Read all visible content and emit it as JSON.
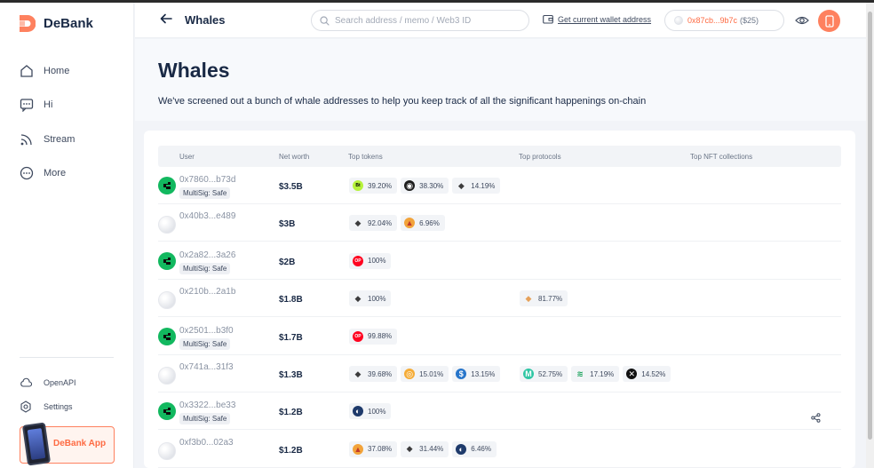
{
  "app": {
    "name": "DeBank"
  },
  "sidebar": {
    "items": [
      {
        "label": "Home",
        "icon": "home-icon"
      },
      {
        "label": "Hi",
        "icon": "chat-icon"
      },
      {
        "label": "Stream",
        "icon": "rss-icon"
      },
      {
        "label": "More",
        "icon": "more-icon"
      }
    ],
    "bottom": [
      {
        "label": "OpenAPI",
        "icon": "cloud-icon"
      },
      {
        "label": "Settings",
        "icon": "gear-icon"
      }
    ],
    "app_banner": "DeBank App"
  },
  "header": {
    "title": "Whales",
    "search_placeholder": "Search address / memo / Web3 ID",
    "get_wallet": "Get current wallet address",
    "wallet_address": "0x87cb...9b7c",
    "wallet_value": "($25)"
  },
  "hero": {
    "title": "Whales",
    "description": "We've screened out a bunch of whale addresses to help you keep track of all the significant happenings on-chain"
  },
  "table": {
    "columns": [
      "User",
      "Net worth",
      "Top tokens",
      "Top protocols",
      "Top NFT collections"
    ],
    "rows": [
      {
        "address": "0x7860...b73d",
        "badge": "MultiSig: Safe",
        "net_worth": "$3.5B",
        "tokens": [
          {
            "pct": "39.20%",
            "icon": "bitget-token-icon"
          },
          {
            "pct": "38.30%",
            "icon": "dark-token-icon"
          },
          {
            "pct": "14.19%",
            "icon": "eth-icon"
          }
        ],
        "protocols": []
      },
      {
        "address": "0x40b3...e489",
        "badge": "",
        "net_worth": "$3B",
        "tokens": [
          {
            "pct": "92.04%",
            "icon": "eth-icon"
          },
          {
            "pct": "6.96%",
            "icon": "shib-icon"
          }
        ],
        "protocols": []
      },
      {
        "address": "0x2a82...3a26",
        "badge": "MultiSig: Safe",
        "net_worth": "$2B",
        "tokens": [
          {
            "pct": "100%",
            "icon": "op-icon"
          }
        ],
        "protocols": []
      },
      {
        "address": "0x210b...2a1b",
        "badge": "",
        "net_worth": "$1.8B",
        "tokens": [
          {
            "pct": "100%",
            "icon": "eth-icon"
          }
        ],
        "protocols": [
          {
            "pct": "81.77%",
            "icon": "beacon-eth-icon"
          }
        ]
      },
      {
        "address": "0x2501...b3f0",
        "badge": "MultiSig: Safe",
        "net_worth": "$1.7B",
        "tokens": [
          {
            "pct": "99.88%",
            "icon": "op-icon"
          }
        ],
        "protocols": []
      },
      {
        "address": "0x741a...31f3",
        "badge": "",
        "net_worth": "$1.3B",
        "tokens": [
          {
            "pct": "39.68%",
            "icon": "eth-icon"
          },
          {
            "pct": "15.01%",
            "icon": "gold-token-icon"
          },
          {
            "pct": "13.15%",
            "icon": "blue-token-icon"
          }
        ],
        "protocols": [
          {
            "pct": "52.75%",
            "icon": "mint-protocol-icon"
          },
          {
            "pct": "17.19%",
            "icon": "green-protocol-icon"
          },
          {
            "pct": "14.52%",
            "icon": "black-protocol-icon"
          }
        ]
      },
      {
        "address": "0x3322...be33",
        "badge": "MultiSig: Safe",
        "net_worth": "$1.2B",
        "tokens": [
          {
            "pct": "100%",
            "icon": "navy-token-icon"
          }
        ],
        "protocols": []
      },
      {
        "address": "0xf3b0...02a3",
        "badge": "",
        "net_worth": "$1.2B",
        "tokens": [
          {
            "pct": "37.08%",
            "icon": "shib-icon"
          },
          {
            "pct": "31.44%",
            "icon": "eth-icon"
          },
          {
            "pct": "6.46%",
            "icon": "navy-token-icon"
          }
        ],
        "protocols": []
      }
    ]
  },
  "colors": {
    "accent": "#fe815f",
    "safe_green": "#12b85f",
    "text": "#192945"
  }
}
